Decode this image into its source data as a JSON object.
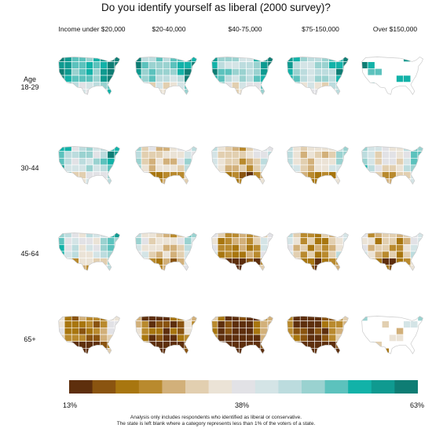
{
  "title": "Do you identify yourself as liberal (2000 survey)?",
  "income_groups": [
    "Income under $20,000",
    "$20-40,000",
    "$40-75,000",
    "$75-150,000",
    "Over $150,000"
  ],
  "age_groups": [
    {
      "line1": "Age",
      "line2": "18-29"
    },
    {
      "line1": "30-44",
      "line2": ""
    },
    {
      "line1": "45-64",
      "line2": ""
    },
    {
      "line1": "65+",
      "line2": ""
    }
  ],
  "map_liberal_level": [
    [
      0.85,
      0.75,
      0.72,
      0.72,
      0.8
    ],
    [
      0.7,
      0.45,
      0.4,
      0.45,
      0.55
    ],
    [
      0.6,
      0.45,
      0.3,
      0.35,
      0.35
    ],
    [
      0.25,
      0.15,
      0.1,
      0.12,
      0.5
    ]
  ],
  "legend": {
    "low_label": "13%",
    "mid_label": "38%",
    "high_label": "63%",
    "colors": [
      "#5e2f0d",
      "#8a5410",
      "#a8760f",
      "#b98a2e",
      "#d2b07a",
      "#e2cfb0",
      "#ebe3d6",
      "#e2e2e6",
      "#d4e4e6",
      "#bcdcde",
      "#9ad2d0",
      "#5cc2bd",
      "#12b2a8",
      "#0f9a90",
      "#0e7d74"
    ]
  },
  "footnote": {
    "line1": "Analysis only includes respondents who identified as liberal or conservative.",
    "line2": "The state is left blank where a category represents less than 1% of the voters of a state."
  }
}
